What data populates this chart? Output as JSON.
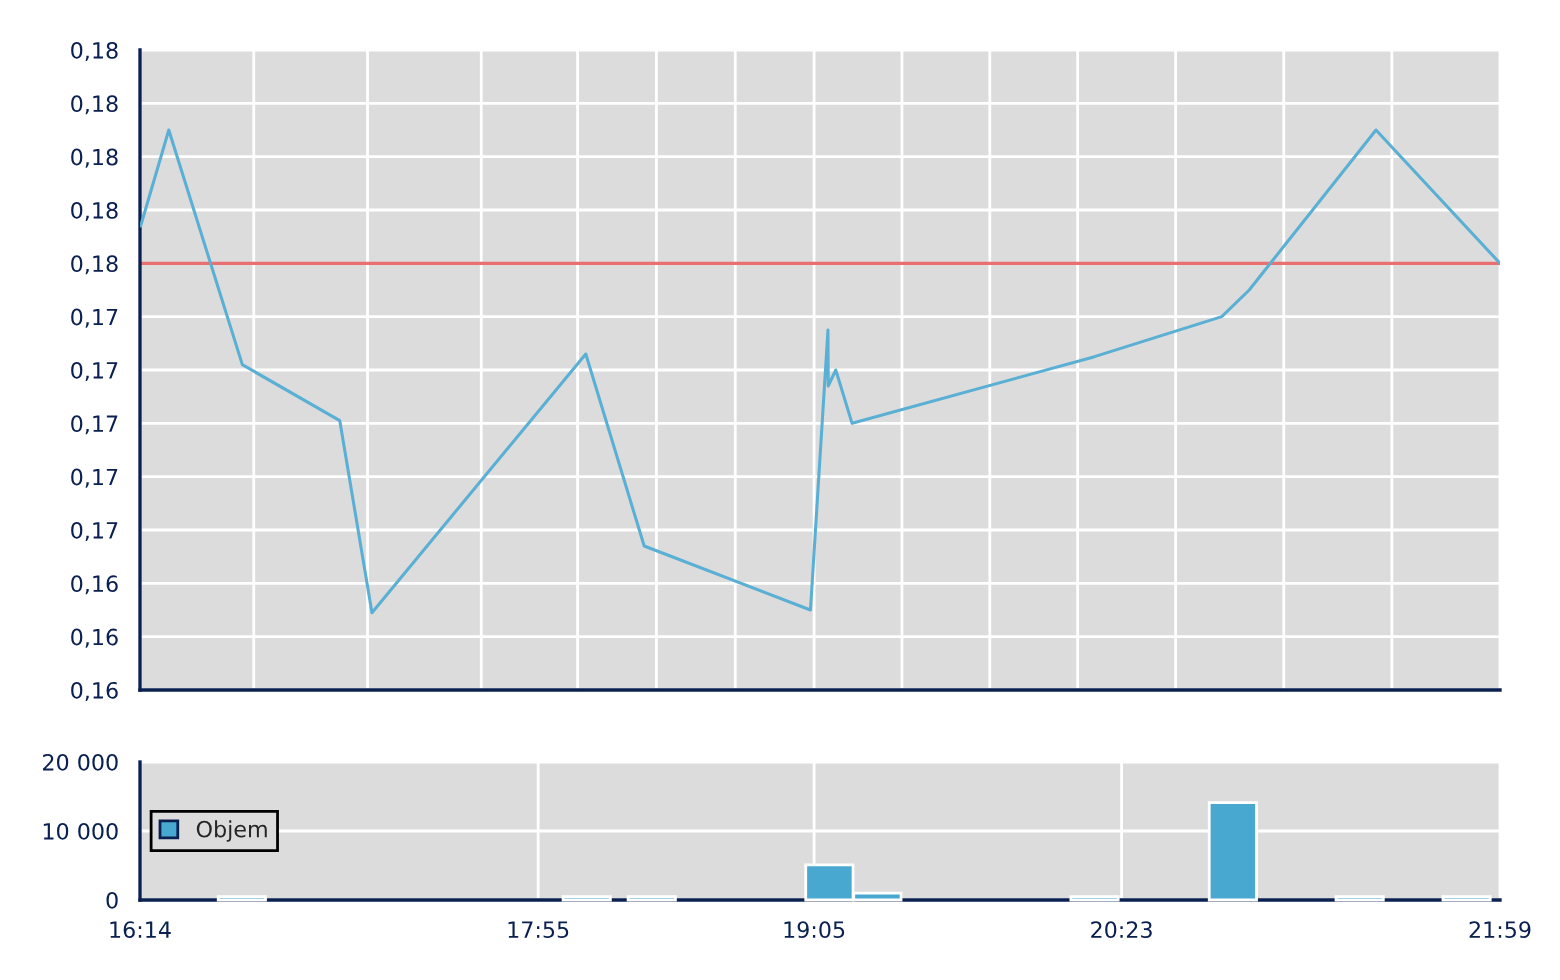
{
  "chart_data": [
    {
      "type": "line",
      "x": [
        16.236,
        16.355,
        16.666,
        17.078,
        17.214,
        18.118,
        18.365,
        19.068,
        19.142,
        19.143,
        19.175,
        19.244,
        20.269,
        20.807,
        20.923,
        21.459,
        21.9833
      ],
      "series": [
        {
          "color": "#5aafd4",
          "values": [
            0.1774,
            0.181,
            0.1722,
            0.1701,
            0.1629,
            0.1726,
            0.1654,
            0.163,
            0.1735,
            0.1714,
            0.172,
            0.17,
            0.1725,
            0.174,
            0.175,
            0.181,
            0.176
          ]
        }
      ],
      "xlim": [
        16.2333,
        21.9833
      ],
      "xticks": [
        {
          "value": 16.2333,
          "label": null
        },
        {
          "value": 16.7143,
          "label": null
        },
        {
          "value": 17.1952,
          "label": null
        },
        {
          "value": 17.6762,
          "label": null
        },
        {
          "value": 18.0834,
          "label": null
        },
        {
          "value": 18.4167,
          "label": null
        },
        {
          "value": 18.75,
          "label": null
        },
        {
          "value": 19.0833,
          "label": null
        },
        {
          "value": 19.4548,
          "label": null
        },
        {
          "value": 19.8262,
          "label": null
        },
        {
          "value": 20.1976,
          "label": null
        },
        {
          "value": 20.6119,
          "label": null
        },
        {
          "value": 21.0691,
          "label": null
        },
        {
          "value": 21.5262,
          "label": null
        },
        {
          "value": 21.9833,
          "label": null
        }
      ],
      "ylim": [
        0.16,
        0.184
      ],
      "yticks": [
        {
          "value": 0.16,
          "label": "0,16"
        },
        {
          "value": 0.162,
          "label": "0,16"
        },
        {
          "value": 0.164,
          "label": "0,16"
        },
        {
          "value": 0.166,
          "label": "0,17"
        },
        {
          "value": 0.168,
          "label": "0,17"
        },
        {
          "value": 0.17,
          "label": "0,17"
        },
        {
          "value": 0.172,
          "label": "0,17"
        },
        {
          "value": 0.174,
          "label": "0,17"
        },
        {
          "value": 0.176,
          "label": "0,18"
        },
        {
          "value": 0.178,
          "label": "0,18"
        },
        {
          "value": 0.18,
          "label": "0,18"
        },
        {
          "value": 0.182,
          "label": "0,18"
        },
        {
          "value": 0.184,
          "label": "0,18"
        }
      ],
      "ref_lines": [
        {
          "axis": "y",
          "value": 0.176,
          "color": "#e87070"
        }
      ],
      "tick_labels": "y",
      "grid": true,
      "marker": "none",
      "line_style": "solid"
    },
    {
      "type": "bar",
      "x": [
        16.664,
        18.122,
        18.397,
        19.148,
        19.351,
        20.269,
        20.854,
        21.39,
        21.842
      ],
      "series": [
        {
          "name": "Objem",
          "color": "#48a8d0",
          "values": [
            500,
            500,
            500,
            5100,
            1000,
            500,
            14100,
            500,
            500
          ]
        }
      ],
      "xlim": [
        16.2333,
        21.9833
      ],
      "xticks": [
        {
          "value": 16.2333,
          "label": "16:14"
        },
        {
          "value": 17.9167,
          "label": "17:55"
        },
        {
          "value": 19.0833,
          "label": "19:05"
        },
        {
          "value": 20.3833,
          "label": "20:23"
        },
        {
          "value": 21.9833,
          "label": "21:59"
        }
      ],
      "ylim": [
        0,
        20000
      ],
      "yticks": [
        {
          "value": 0,
          "label": "0"
        },
        {
          "value": 10000,
          "label": "10 000"
        },
        {
          "value": 20000,
          "label": "20 000"
        }
      ],
      "grid": true,
      "legend": "left"
    }
  ]
}
